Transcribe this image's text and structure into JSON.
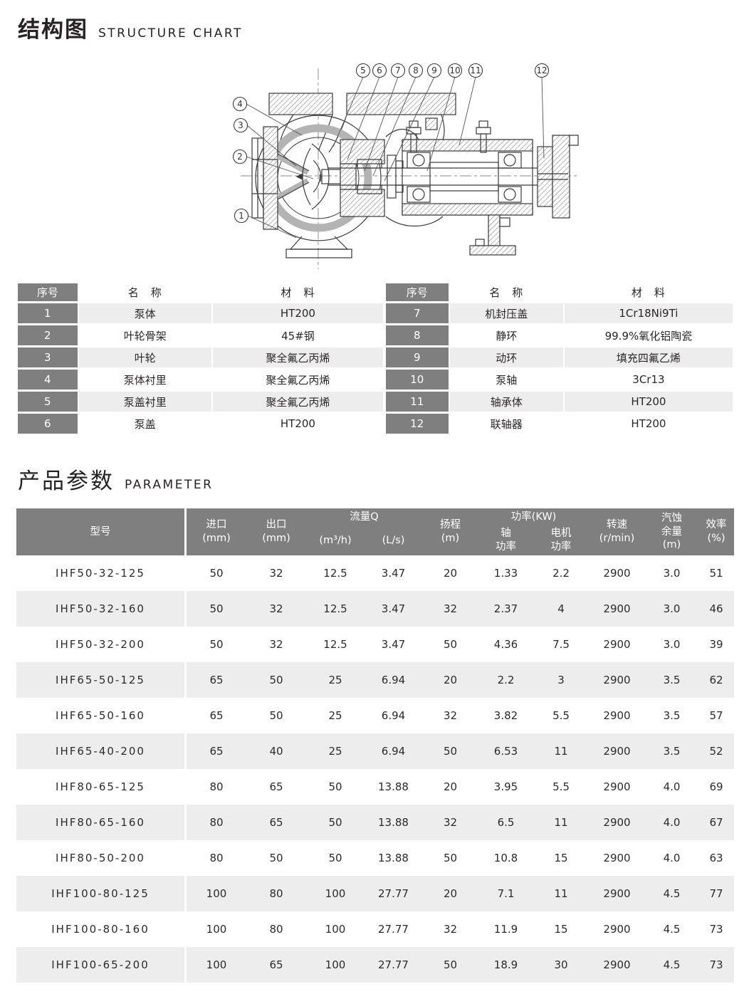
{
  "sections": {
    "structure": {
      "zh": "结构图",
      "en": "STRUCTURE CHART"
    },
    "parameter": {
      "zh": "产品参数",
      "en": "PARAMETER"
    }
  },
  "drawing": {
    "callouts": [
      "1",
      "2",
      "3",
      "4",
      "5",
      "6",
      "7",
      "8",
      "9",
      "10",
      "11",
      "12"
    ]
  },
  "parts_tables": [
    {
      "headers": {
        "no": "序号",
        "name": "名　称",
        "material": "材　料"
      },
      "rows": [
        [
          "1",
          "泵体",
          "HT200"
        ],
        [
          "2",
          "叶轮骨架",
          "45#钢"
        ],
        [
          "3",
          "叶轮",
          "聚全氟乙丙烯"
        ],
        [
          "4",
          "泵体衬里",
          "聚全氟乙丙烯"
        ],
        [
          "5",
          "泵盖衬里",
          "聚全氟乙丙烯"
        ],
        [
          "6",
          "泵盖",
          "HT200"
        ]
      ]
    },
    {
      "headers": {
        "no": "序号",
        "name": "名　称",
        "material": "材　料"
      },
      "rows": [
        [
          "7",
          "机封压盖",
          "1Cr18Ni9Ti"
        ],
        [
          "8",
          "静环",
          "99.9%氧化铝陶瓷"
        ],
        [
          "9",
          "动环",
          "填充四氟乙烯"
        ],
        [
          "10",
          "泵轴",
          "3Cr13"
        ],
        [
          "11",
          "轴承体",
          "HT200"
        ],
        [
          "12",
          "联轴器",
          "HT200"
        ]
      ]
    }
  ],
  "parameter_table": {
    "header": {
      "model": "型号",
      "inlet": "进口\n(mm)",
      "outlet": "出口\n(mm)",
      "flow_group": "流量Q",
      "flow_m3h": "(m³/h)",
      "flow_ls": "(L/s)",
      "head": "扬程\n(m)",
      "power_group": "功率(KW)",
      "power_shaft": "轴\n功率",
      "power_motor": "电机\n功率",
      "speed": "转速\n(r/min)",
      "npsh": "汽蚀\n余量\n(m)",
      "eff": "效率\n(%)"
    },
    "rows": [
      [
        "IHF50-32-125",
        "50",
        "32",
        "12.5",
        "3.47",
        "20",
        "1.33",
        "2.2",
        "2900",
        "3.0",
        "51"
      ],
      [
        "IHF50-32-160",
        "50",
        "32",
        "12.5",
        "3.47",
        "32",
        "2.37",
        "4",
        "2900",
        "3.0",
        "46"
      ],
      [
        "IHF50-32-200",
        "50",
        "32",
        "12.5",
        "3.47",
        "50",
        "4.36",
        "7.5",
        "2900",
        "3.0",
        "39"
      ],
      [
        "IHF65-50-125",
        "65",
        "50",
        "25",
        "6.94",
        "20",
        "2.2",
        "3",
        "2900",
        "3.5",
        "62"
      ],
      [
        "IHF65-50-160",
        "65",
        "50",
        "25",
        "6.94",
        "32",
        "3.82",
        "5.5",
        "2900",
        "3.5",
        "57"
      ],
      [
        "IHF65-40-200",
        "65",
        "40",
        "25",
        "6.94",
        "50",
        "6.53",
        "11",
        "2900",
        "3.5",
        "52"
      ],
      [
        "IHF80-65-125",
        "80",
        "65",
        "50",
        "13.88",
        "20",
        "3.95",
        "5.5",
        "2900",
        "4.0",
        "69"
      ],
      [
        "IHF80-65-160",
        "80",
        "65",
        "50",
        "13.88",
        "32",
        "6.5",
        "11",
        "2900",
        "4.0",
        "67"
      ],
      [
        "IHF80-50-200",
        "80",
        "50",
        "50",
        "13.88",
        "50",
        "10.8",
        "15",
        "2900",
        "4.0",
        "63"
      ],
      [
        "IHF100-80-125",
        "100",
        "80",
        "100",
        "27.77",
        "20",
        "7.1",
        "11",
        "2900",
        "4.5",
        "77"
      ],
      [
        "IHF100-80-160",
        "100",
        "80",
        "100",
        "27.77",
        "32",
        "11.9",
        "15",
        "2900",
        "4.5",
        "73"
      ],
      [
        "IHF100-65-200",
        "100",
        "65",
        "100",
        "27.77",
        "50",
        "18.9",
        "30",
        "2900",
        "4.5",
        "73"
      ]
    ]
  },
  "colors": {
    "header_gray": "#7f7f7f",
    "row_light": "#ededed",
    "row_white": "#ffffff",
    "text_dark": "#2b2627"
  }
}
